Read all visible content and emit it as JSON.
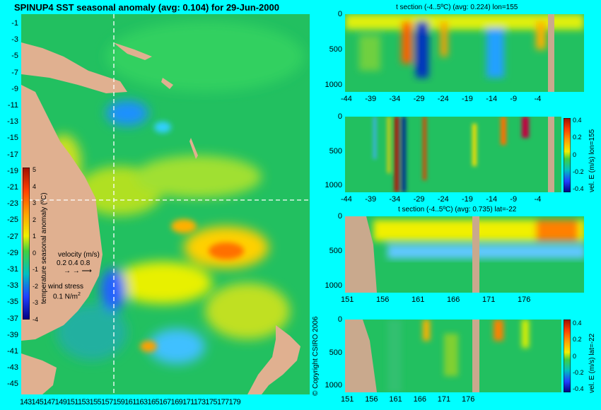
{
  "map": {
    "title": "SPINUP4 SST seasonal anomaly (avg: 0.104) for 29-Jun-2000",
    "y_ticks": [
      "-1",
      "-3",
      "-5",
      "-7",
      "-9",
      "-11",
      "-13",
      "-15",
      "-17",
      "-19",
      "-21",
      "-23",
      "-25",
      "-27",
      "-29",
      "-31",
      "-33",
      "-35",
      "-37",
      "-39",
      "-41",
      "-43",
      "-45"
    ],
    "x_ticks_text": "143145147149151153155157159161163165167169171173175177179",
    "colorbar": {
      "ticks": [
        "5",
        "4",
        "3",
        "2",
        "1",
        "0",
        "-1",
        "-2",
        "-3",
        "-4"
      ],
      "label": "temperature seasonal anomaly (ºC)"
    },
    "velocity_label": "velocity (m/s)",
    "velocity_scale": "0.2 0.4 0.8",
    "wind_label": "wind stress",
    "wind_scale": "0.1 N/m",
    "wind_scale_sup": "2"
  },
  "copyright": "© Copyright CSIRO 2006",
  "panels": [
    {
      "title": "t section (-4..5ºC) (avg: 0.224) lon=155",
      "y_ticks": [
        "0",
        "500",
        "1000"
      ],
      "x_ticks": [
        "-44",
        "-39",
        "-34",
        "-29",
        "-24",
        "-19",
        "-14",
        "-9",
        "-4"
      ],
      "side_label": ""
    },
    {
      "title": "",
      "y_ticks": [
        "0",
        "500",
        "1000"
      ],
      "x_ticks": [
        "-44",
        "-39",
        "-34",
        "-29",
        "-24",
        "-19",
        "-14",
        "-9",
        "-4"
      ],
      "side_label": "vel. E (m/s) lon=155",
      "colorbar_ticks": [
        "0.4",
        "0.2",
        "0",
        "-0.2",
        "-0.4"
      ]
    },
    {
      "title": "t section (-4..5ºC) (avg: 0.735) lat=-22",
      "y_ticks": [
        "0",
        "500",
        "1000"
      ],
      "x_ticks": [
        "151",
        "156",
        "161",
        "166",
        "171",
        "176"
      ],
      "side_label": ""
    },
    {
      "title": "",
      "y_ticks": [
        "0",
        "500",
        "1000"
      ],
      "x_ticks": [
        "151",
        "156",
        "161",
        "166",
        "171",
        "176"
      ],
      "side_label": "vel. E (m/s) lat=-22",
      "colorbar_ticks": [
        "0.4",
        "0.2",
        "0",
        "-0.2",
        "-0.4"
      ]
    }
  ],
  "colors": {
    "background": "#00ffff",
    "ocean_base": "#22c060",
    "land": "#e0b090",
    "section_land": "#c9a98d"
  }
}
